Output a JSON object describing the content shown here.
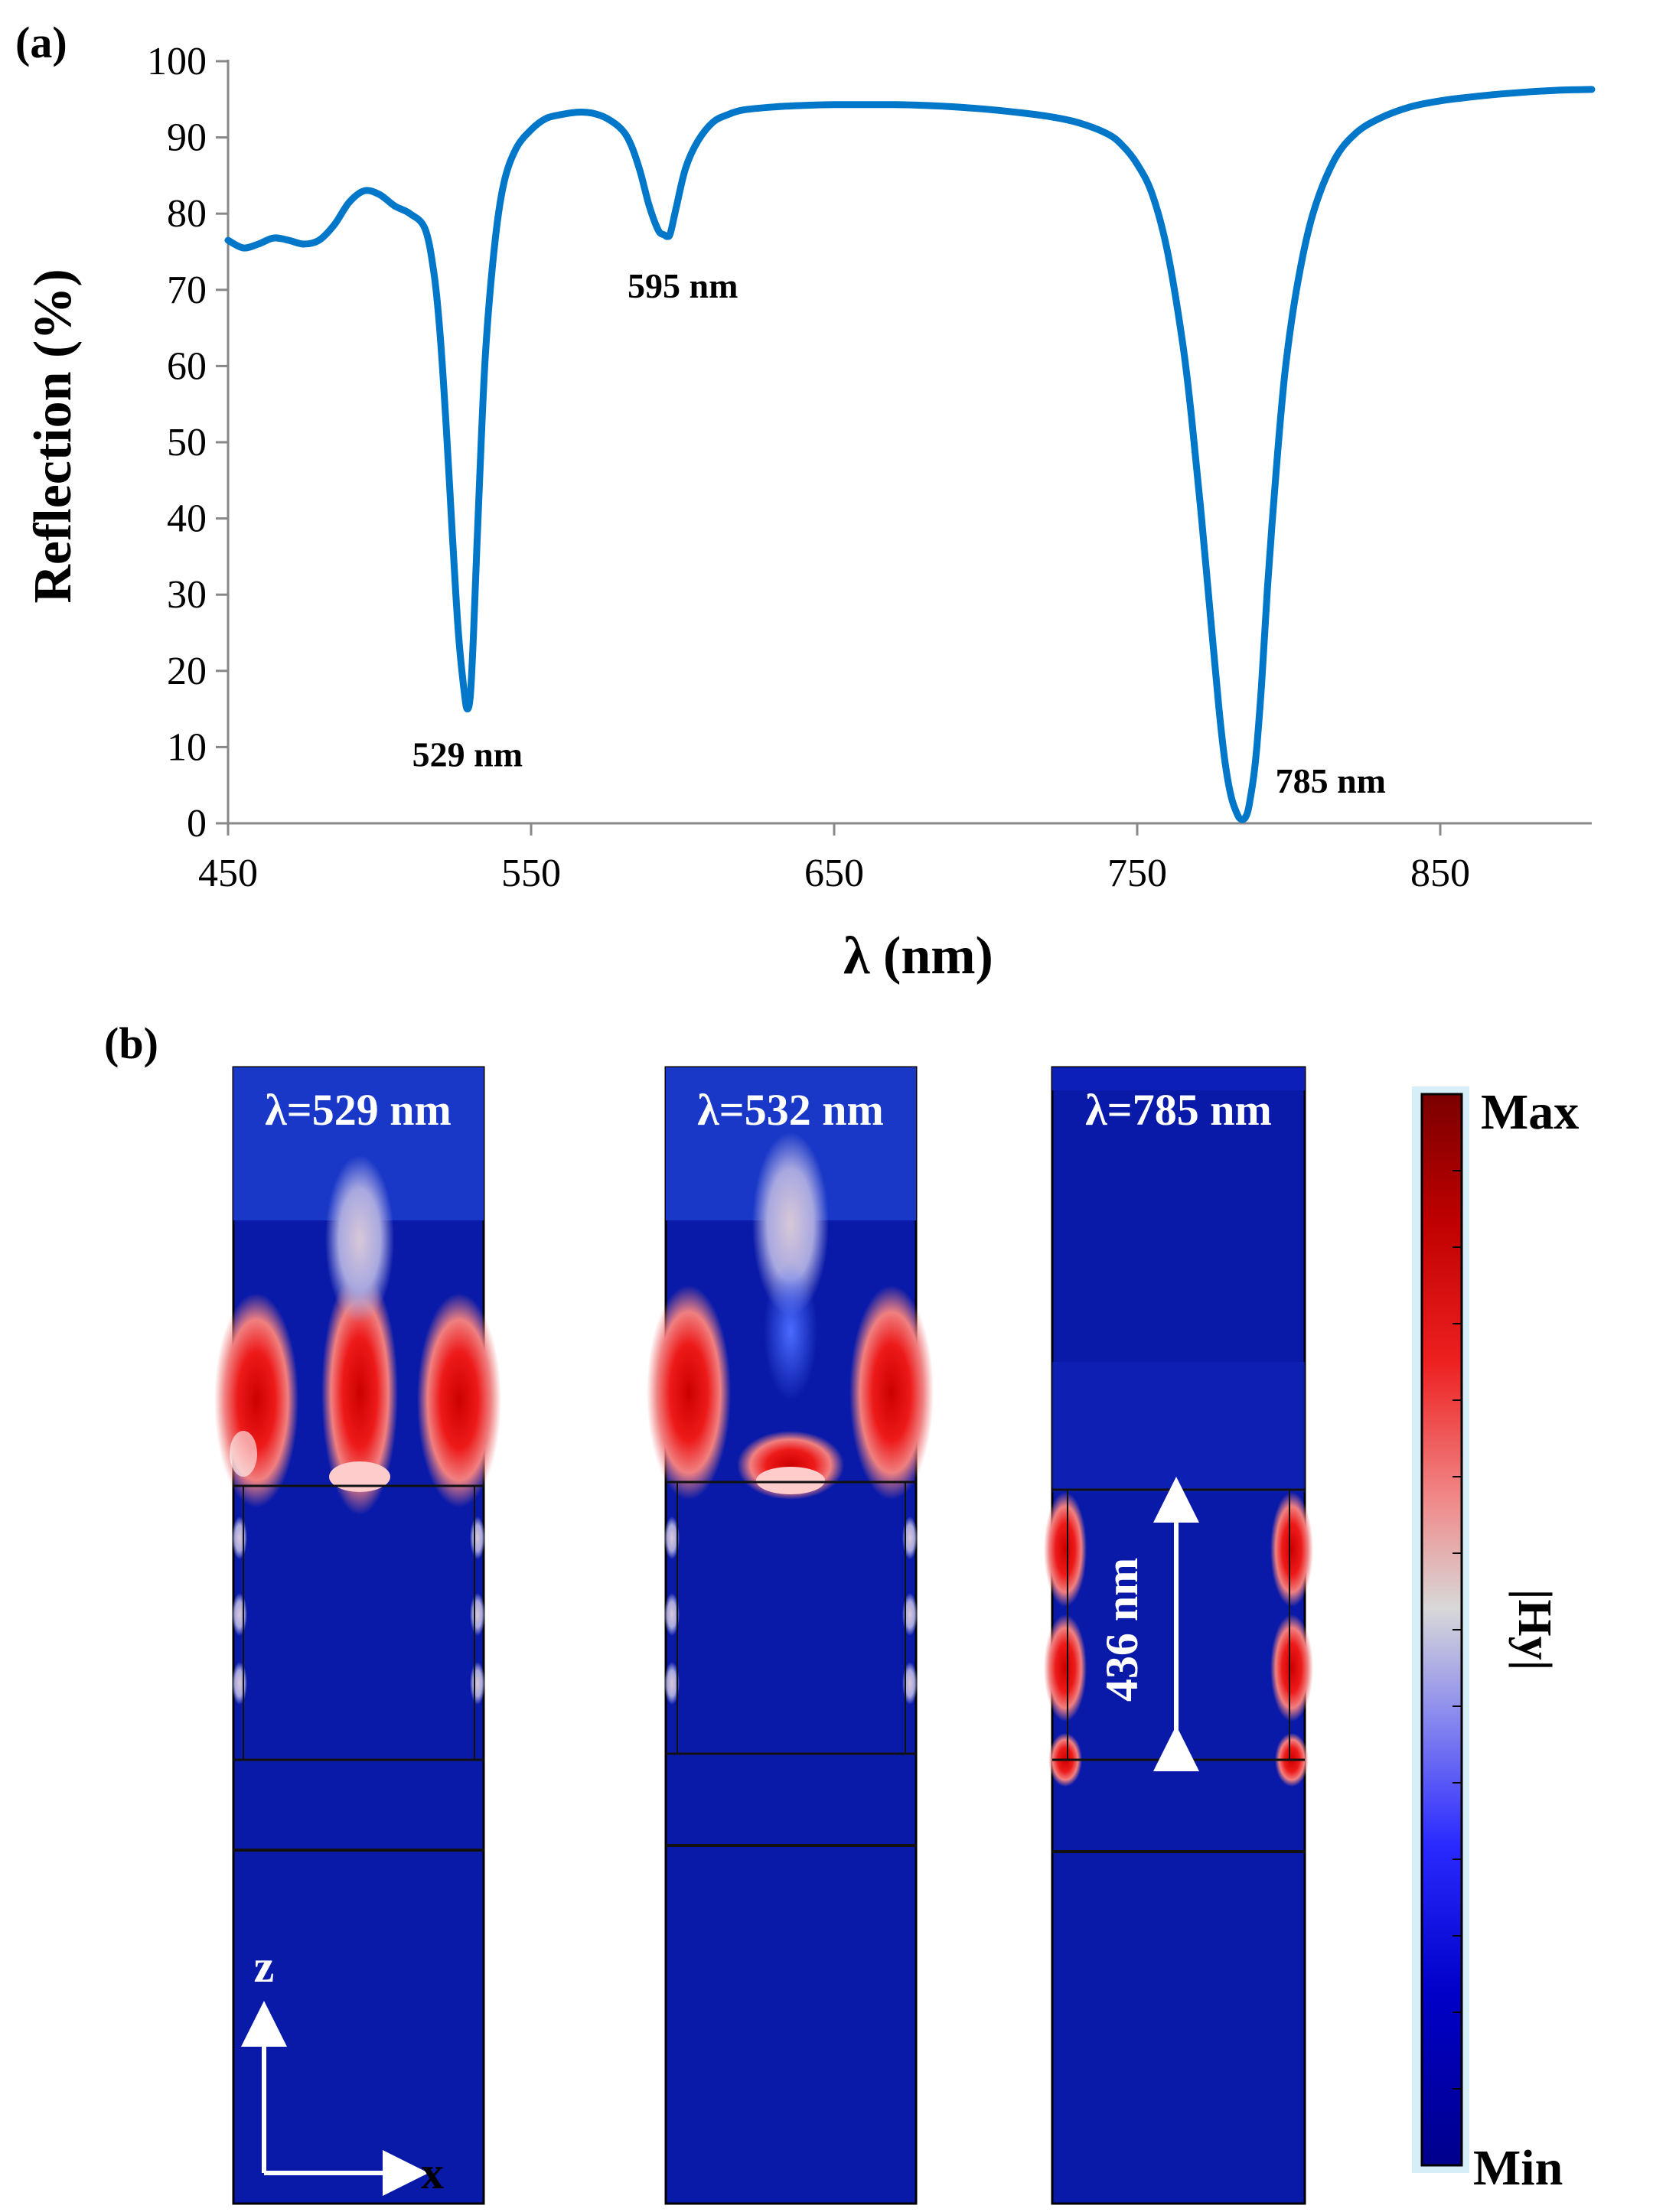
{
  "panel_a": {
    "label": "(a)"
  },
  "panel_b": {
    "label": "(b)"
  },
  "chart_data": {
    "type": "line",
    "title": "",
    "xlabel": "λ (nm)",
    "ylabel": "Reflection (%)",
    "xlim": [
      450,
      900
    ],
    "ylim": [
      0,
      100
    ],
    "x_ticks": [
      450,
      550,
      650,
      750,
      850
    ],
    "x_tick_labels": [
      "450",
      "550",
      "650",
      "750",
      "850"
    ],
    "y_ticks": [
      0,
      10,
      20,
      30,
      40,
      50,
      60,
      70,
      80,
      90,
      100
    ],
    "y_tick_labels": [
      "0",
      "10",
      "20",
      "30",
      "40",
      "50",
      "60",
      "70",
      "80",
      "90",
      "100"
    ],
    "grid": false,
    "series": [
      {
        "name": "Reflection",
        "color": "#0077C8",
        "x": [
          450,
          455,
          460,
          465,
          470,
          475,
          480,
          485,
          490,
          495,
          500,
          505,
          510,
          515,
          518,
          520,
          522,
          524,
          526,
          528,
          529,
          530,
          531,
          533,
          535,
          538,
          541,
          545,
          550,
          555,
          560,
          565,
          570,
          575,
          580,
          583,
          586,
          589,
          592,
          594,
          595,
          596,
          598,
          601,
          605,
          610,
          615,
          620,
          630,
          640,
          650,
          660,
          670,
          680,
          690,
          700,
          710,
          720,
          730,
          740,
          745,
          750,
          755,
          760,
          765,
          768,
          771,
          774,
          777,
          779,
          781,
          783,
          784,
          785,
          786,
          787,
          789,
          791,
          793,
          796,
          799,
          803,
          808,
          815,
          822,
          830,
          840,
          850,
          860,
          870,
          880,
          890,
          900
        ],
        "values": [
          76.5,
          75.5,
          76,
          76.8,
          76.5,
          76,
          76.5,
          78.5,
          81.5,
          83,
          82.5,
          81,
          80,
          78,
          72,
          64,
          52,
          38,
          25,
          17,
          15,
          17,
          25,
          45,
          62,
          76,
          84,
          88.5,
          91,
          92.5,
          93,
          93.3,
          93.2,
          92.5,
          91,
          89,
          85.5,
          81,
          77.8,
          77.2,
          77,
          77.5,
          81,
          86,
          89.5,
          92,
          93,
          93.6,
          94,
          94.2,
          94.3,
          94.3,
          94.3,
          94.2,
          94,
          93.7,
          93.3,
          92.8,
          92,
          90.5,
          89,
          86.5,
          82.5,
          75,
          63,
          53,
          41,
          28,
          15,
          8,
          3.5,
          1.2,
          0.6,
          0.5,
          1,
          2.5,
          8,
          18,
          31,
          47,
          60,
          71,
          80,
          87,
          90.5,
          92.5,
          94,
          94.8,
          95.3,
          95.7,
          96,
          96.2,
          96.3
        ]
      }
    ],
    "annotations": [
      {
        "text": "529 nm",
        "x": 529,
        "y": 15
      },
      {
        "text": "595 nm",
        "x": 595,
        "y": 77
      },
      {
        "text": "785 nm",
        "x": 785,
        "y": 0.5
      }
    ]
  },
  "field_maps": {
    "maps": [
      {
        "title": "λ=529 nm",
        "mode": "529"
      },
      {
        "title": "λ=532 nm",
        "mode": "532"
      },
      {
        "title": "λ=785 nm",
        "mode": "785"
      }
    ],
    "dimension_label": "436 nm",
    "axis_z": "z",
    "axis_x": "x"
  },
  "colorbar": {
    "max_label": "Max",
    "min_label": "Min",
    "quantity": "|Hy|"
  }
}
